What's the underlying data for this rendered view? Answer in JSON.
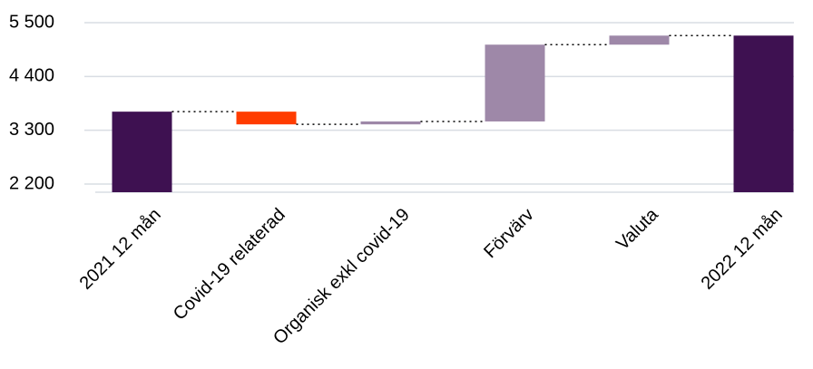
{
  "chart_data": {
    "type": "waterfall",
    "categories": [
      "2021 12 mån",
      "Covid-19 relaterad",
      "Organisk exkl covid-19",
      "Förvärv",
      "Valuta",
      "2022 12 mån"
    ],
    "values": [
      3680,
      -260,
      60,
      1570,
      185,
      5235
    ],
    "is_total": [
      true,
      false,
      false,
      false,
      false,
      true
    ],
    "colors": {
      "total": "#3e1151",
      "increase": "#9e88a8",
      "decrease": "#ff3c00"
    },
    "ylim": [
      2033,
      5963
    ],
    "yticks": [
      {
        "value": 2200,
        "label": "2 200"
      },
      {
        "value": 3300,
        "label": "3 300"
      },
      {
        "value": 4400,
        "label": "4 400"
      },
      {
        "value": 5500,
        "label": "5 500"
      }
    ],
    "grid": true
  }
}
